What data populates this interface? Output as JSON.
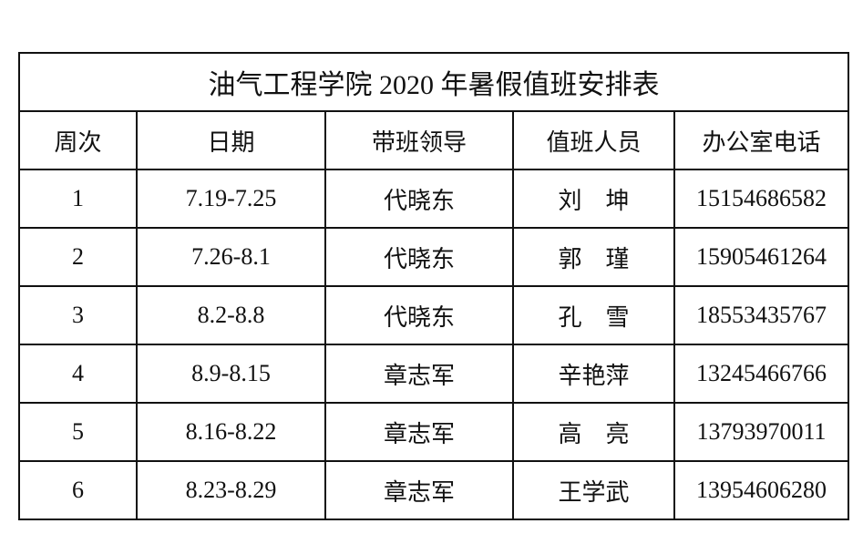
{
  "title": "油气工程学院 2020 年暑假值班安排表",
  "headers": [
    "周次",
    "日期",
    "带班领导",
    "值班人员",
    "办公室电话"
  ],
  "rows": [
    [
      "1",
      "7.19-7.25",
      "代晓东",
      "刘　坤",
      "15154686582"
    ],
    [
      "2",
      "7.26-8.1",
      "代晓东",
      "郭　瑾",
      "15905461264"
    ],
    [
      "3",
      "8.2-8.8",
      "代晓东",
      "孔　雪",
      "18553435767"
    ],
    [
      "4",
      "8.9-8.15",
      "章志军",
      "辛艳萍",
      "13245466766"
    ],
    [
      "5",
      "8.16-8.22",
      "章志军",
      "高　亮",
      "13793970011"
    ],
    [
      "6",
      "8.23-8.29",
      "章志军",
      "王学武",
      "13954606280"
    ]
  ]
}
